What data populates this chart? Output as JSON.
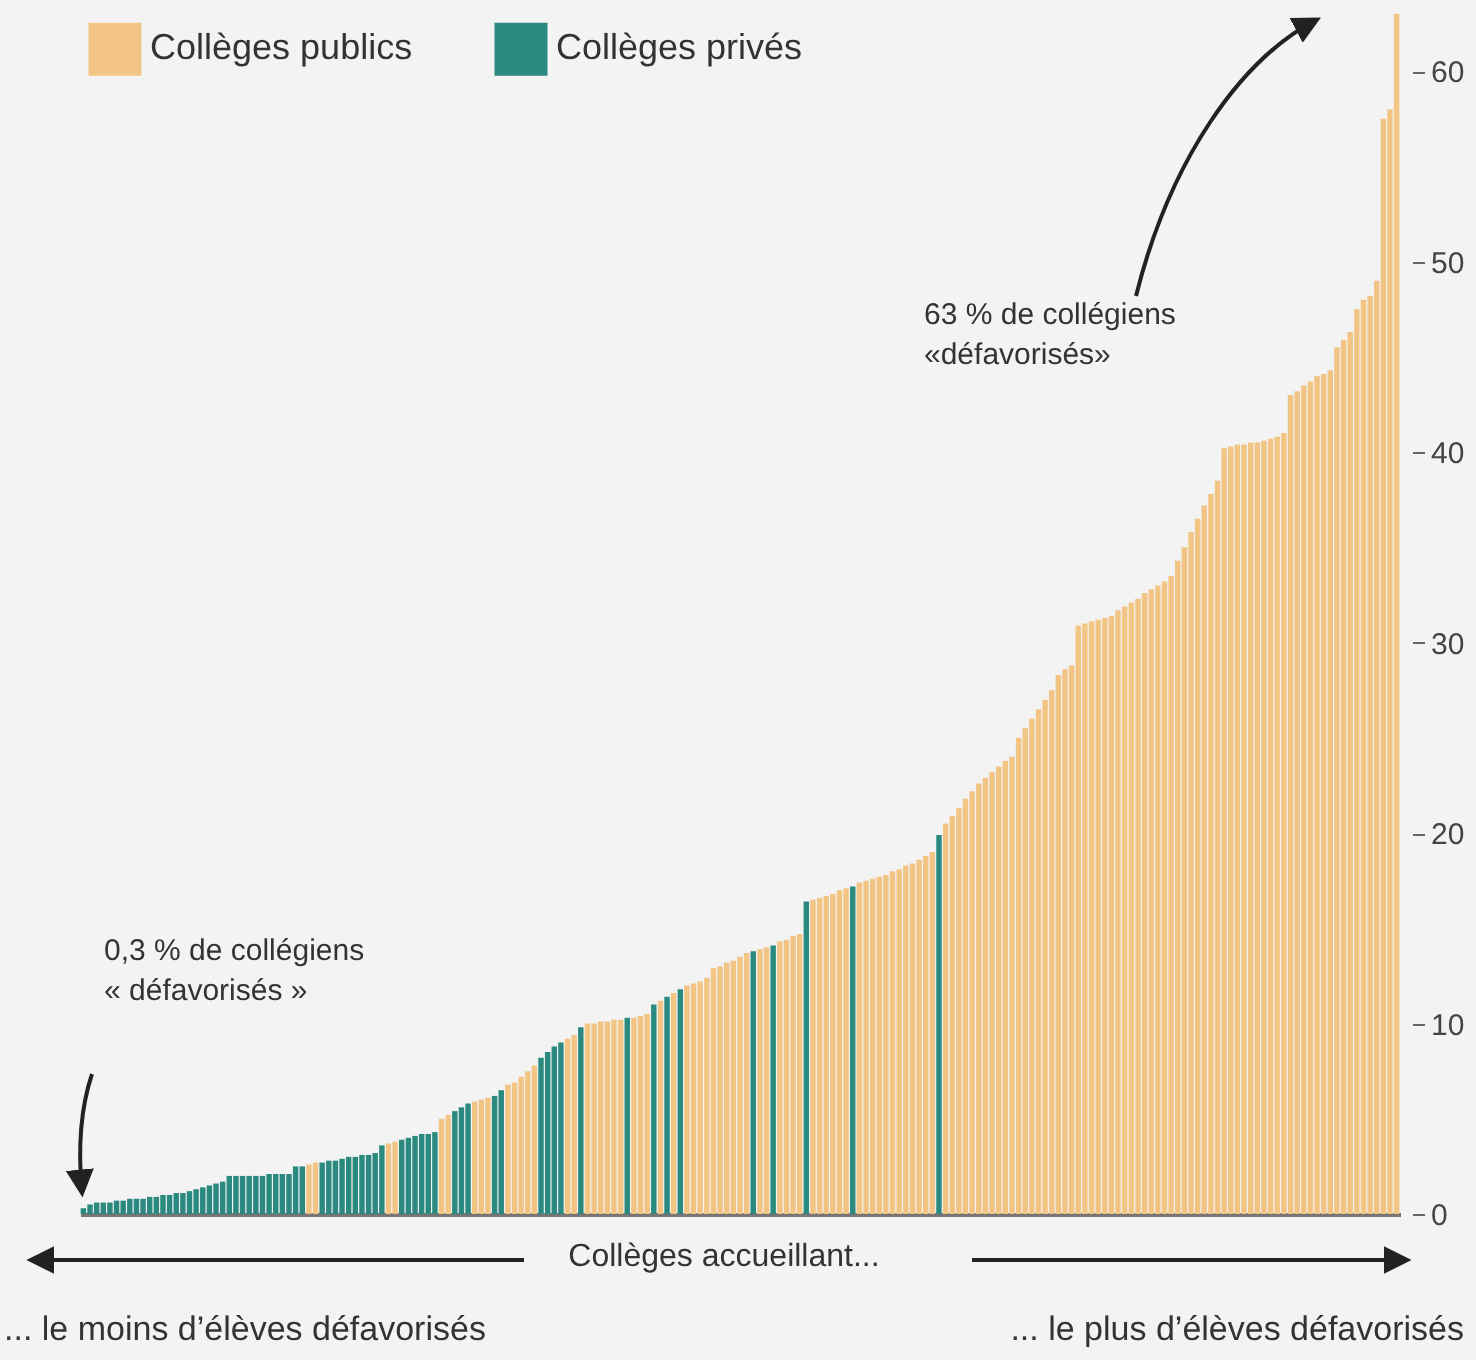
{
  "chart_data": {
    "type": "bar",
    "xlabel": "Collèges accueillant...",
    "annotations": [
      "0,3 % de collégiens\n« défavorisés »",
      "63 % de collégiens\n«défavorisés»",
      "... le moins d’élèves défavorisés",
      "... le plus d’élèves défavorisés"
    ],
    "legend": "top left",
    "ylim": [
      0,
      63
    ],
    "yticks": [
      0,
      10,
      20,
      30,
      40,
      50,
      60
    ],
    "categories": [
      null,
      null,
      null,
      null,
      null,
      null,
      null,
      null,
      null,
      null,
      null,
      null,
      null,
      null,
      null,
      null,
      null,
      null,
      null,
      null,
      null,
      null,
      null,
      null,
      null,
      null,
      null,
      null,
      null,
      null,
      null,
      null,
      null,
      null,
      null,
      null,
      null,
      null,
      null,
      null,
      null,
      null,
      null,
      null,
      null,
      null,
      null,
      null,
      null,
      null,
      null,
      null,
      null,
      null,
      null,
      null,
      null,
      null,
      null,
      null,
      null,
      null,
      null,
      null,
      null,
      null,
      null,
      null,
      null,
      null,
      null,
      null,
      null,
      null,
      null,
      null,
      null,
      null,
      null,
      null,
      null,
      null,
      null,
      null,
      null,
      null,
      null,
      null,
      null,
      null,
      null,
      null,
      null,
      null,
      null,
      null,
      null,
      null,
      null,
      null,
      null,
      null,
      null,
      null,
      null,
      null,
      null,
      null,
      null,
      null,
      null,
      null,
      null,
      null,
      null,
      null,
      null,
      null,
      null,
      null,
      null,
      null,
      null,
      null,
      null,
      null,
      null,
      null,
      null,
      null,
      null,
      null,
      null,
      null,
      null,
      null,
      null,
      null,
      null,
      null,
      null,
      null,
      null,
      null,
      null,
      null,
      null,
      null,
      null,
      null,
      null,
      null,
      null,
      null,
      null,
      null,
      null,
      null,
      null,
      null,
      null,
      null,
      null,
      null,
      null,
      null,
      null,
      null,
      null,
      null,
      null,
      null,
      null,
      null,
      null,
      null,
      null,
      null,
      null,
      null,
      null,
      null,
      null,
      null,
      null,
      null,
      null,
      null,
      null,
      null,
      null,
      null,
      null,
      null,
      null,
      null,
      null,
      null,
      null
    ],
    "series": [
      {
        "name": "Collèges publics",
        "color": "#f2c584",
        "values": [
          null,
          null,
          null,
          null,
          null,
          null,
          null,
          null,
          null,
          null,
          null,
          null,
          null,
          null,
          null,
          null,
          null,
          null,
          null,
          null,
          null,
          null,
          null,
          null,
          null,
          null,
          null,
          null,
          null,
          null,
          null,
          null,
          null,
          null,
          2.6,
          2.7,
          null,
          null,
          null,
          null,
          null,
          null,
          null,
          null,
          null,
          null,
          3.7,
          3.8,
          null,
          null,
          null,
          null,
          null,
          null,
          5.0,
          5.2,
          null,
          null,
          null,
          5.9,
          6.0,
          6.1,
          null,
          null,
          6.8,
          6.9,
          7.2,
          7.5,
          7.8,
          null,
          null,
          null,
          null,
          9.2,
          9.4,
          null,
          10.0,
          10.0,
          10.1,
          10.1,
          10.2,
          10.2,
          null,
          10.3,
          10.4,
          10.5,
          null,
          11.2,
          null,
          11.6,
          null,
          12.0,
          12.1,
          12.2,
          12.4,
          12.9,
          13.0,
          13.2,
          13.3,
          13.5,
          13.7,
          null,
          13.9,
          14.0,
          null,
          14.3,
          14.4,
          14.6,
          14.7,
          null,
          16.5,
          16.6,
          16.7,
          16.8,
          17.0,
          17.1,
          null,
          17.4,
          17.5,
          17.6,
          17.7,
          17.8,
          18.0,
          18.1,
          18.3,
          18.4,
          18.6,
          18.8,
          19.0,
          null,
          20.5,
          20.9,
          21.3,
          21.8,
          22.2,
          22.6,
          22.9,
          23.2,
          23.5,
          23.8,
          24.0,
          25.0,
          25.5,
          26.0,
          26.5,
          27.0,
          27.5,
          28.3,
          28.6,
          28.8,
          30.9,
          31.0,
          31.1,
          31.2,
          31.3,
          31.4,
          31.7,
          31.9,
          32.1,
          32.3,
          32.6,
          32.8,
          33.0,
          33.2,
          33.5,
          34.3,
          35.0,
          35.8,
          36.5,
          37.2,
          37.8,
          38.5,
          40.2,
          40.3,
          40.4,
          40.4,
          40.5,
          40.5,
          40.6,
          40.7,
          40.8,
          41.0,
          43.0,
          43.2,
          43.5,
          43.7,
          44.0,
          44.1,
          44.3,
          45.5,
          45.9,
          46.3,
          47.5,
          48.0,
          48.2,
          49.0,
          57.5,
          58.0,
          63
        ]
      },
      {
        "name": "Collèges privés",
        "color": "#2a8a80",
        "values": [
          0.3,
          0.5,
          0.6,
          0.6,
          0.6,
          0.7,
          0.7,
          0.8,
          0.8,
          0.8,
          0.9,
          0.9,
          1.0,
          1.0,
          1.1,
          1.1,
          1.2,
          1.3,
          1.4,
          1.5,
          1.6,
          1.7,
          2.0,
          2.0,
          2.0,
          2.0,
          2.0,
          2.0,
          2.1,
          2.1,
          2.1,
          2.1,
          2.5,
          2.5,
          null,
          null,
          2.7,
          2.8,
          2.8,
          2.9,
          3.0,
          3.0,
          3.1,
          3.1,
          3.2,
          3.6,
          null,
          null,
          3.9,
          4.0,
          4.1,
          4.2,
          4.2,
          4.3,
          null,
          null,
          5.4,
          5.6,
          5.8,
          null,
          null,
          null,
          6.2,
          6.5,
          null,
          null,
          null,
          null,
          null,
          8.2,
          8.5,
          8.8,
          9.0,
          null,
          null,
          9.8,
          null,
          null,
          null,
          null,
          null,
          null,
          10.3,
          null,
          null,
          null,
          11.0,
          null,
          11.4,
          null,
          11.8,
          null,
          null,
          null,
          null,
          null,
          null,
          null,
          null,
          null,
          null,
          13.8,
          null,
          null,
          14.1,
          null,
          null,
          null,
          null,
          16.4,
          null,
          null,
          null,
          null,
          null,
          null,
          17.2,
          null,
          null,
          null,
          null,
          null,
          null,
          null,
          null,
          null,
          null,
          null,
          null,
          19.9,
          null,
          null,
          null,
          null,
          null,
          null,
          null,
          null,
          null,
          null,
          null,
          null,
          null,
          null,
          null,
          null,
          null,
          null,
          null,
          null,
          null,
          null,
          null,
          null,
          null,
          null,
          null,
          null,
          null,
          null,
          null,
          null,
          null,
          null,
          null,
          null,
          null,
          null,
          null,
          null,
          null,
          null,
          null,
          null,
          null,
          null,
          null,
          null,
          null,
          null,
          null,
          null,
          null,
          null,
          null,
          null,
          null,
          null,
          null,
          null,
          null,
          null,
          null,
          null,
          null,
          null,
          null,
          null,
          null
        ]
      }
    ]
  }
}
